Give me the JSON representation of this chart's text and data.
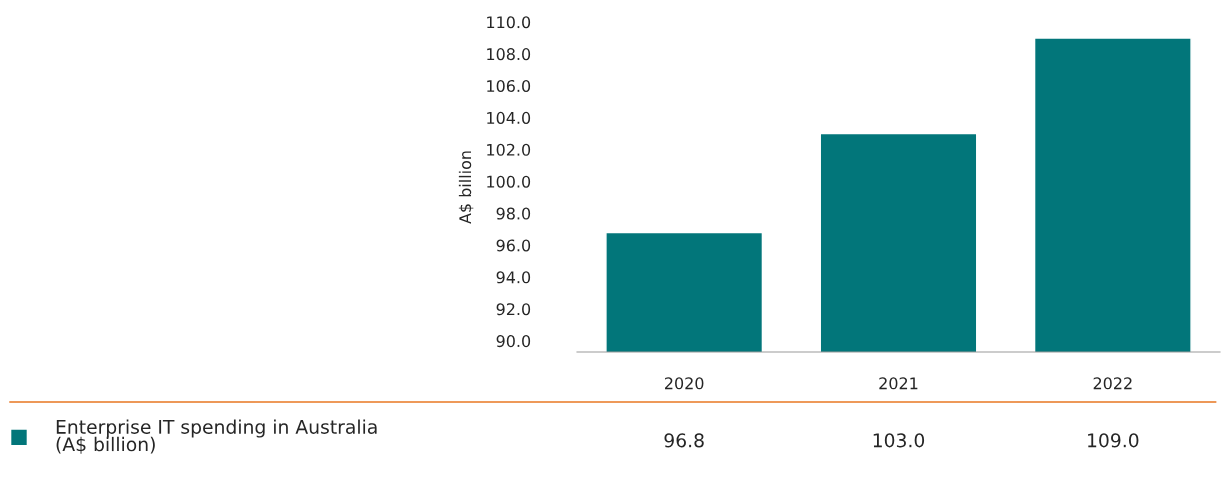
{
  "chart_data": {
    "type": "bar",
    "ylabel": "A$ billion",
    "categories": [
      "2020",
      "2021",
      "2022"
    ],
    "series": [
      {
        "name": "Enterprise IT spending in Australia\n(A$ billion)",
        "color": "#02767a",
        "values": [
          96.8,
          103.0,
          109.0
        ],
        "value_labels": [
          "96.8",
          "103.0",
          "109.0"
        ]
      }
    ],
    "ylim": [
      89.3,
      110
    ],
    "yticks": [
      {
        "value": 90,
        "label": "90.0"
      },
      {
        "value": 92,
        "label": "92.0"
      },
      {
        "value": 94,
        "label": "94.0"
      },
      {
        "value": 96,
        "label": "96.0"
      },
      {
        "value": 98,
        "label": "98.0"
      },
      {
        "value": 100,
        "label": "100.0"
      },
      {
        "value": 102,
        "label": "102.0"
      },
      {
        "value": 104,
        "label": "104.0"
      },
      {
        "value": 106,
        "label": "106.0"
      },
      {
        "value": 108,
        "label": "108.0"
      },
      {
        "value": 110,
        "label": "110.0"
      }
    ],
    "grid": false
  }
}
